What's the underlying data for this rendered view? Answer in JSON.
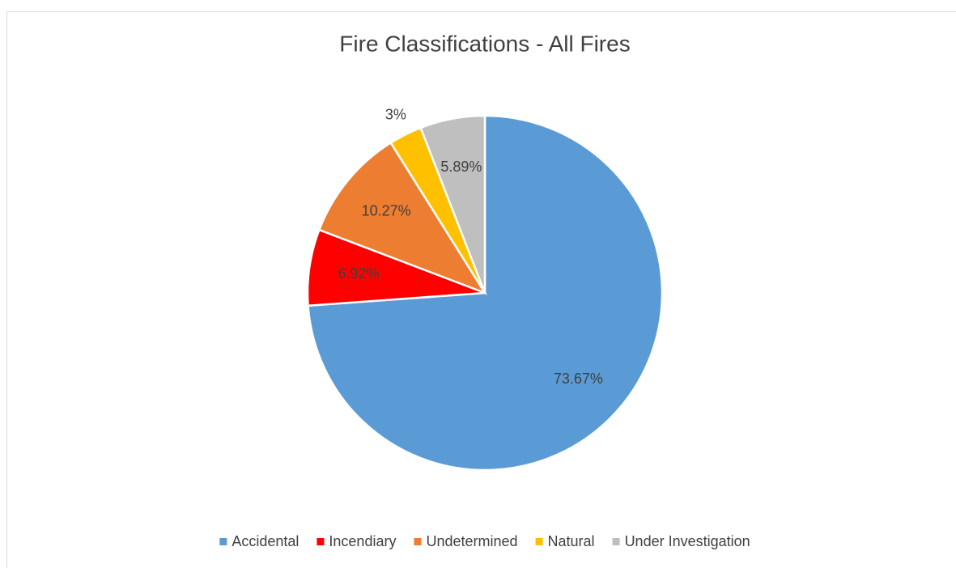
{
  "chart_data": {
    "type": "pie",
    "title": "Fire Classifications - All Fires",
    "categories": [
      "Accidental",
      "Incendiary",
      "Undetermined",
      "Natural",
      "Under Investigation"
    ],
    "values": [
      73.67,
      6.92,
      10.27,
      3,
      5.89
    ],
    "value_labels": [
      "73.67%",
      "6.92%",
      "10.27%",
      "3%",
      "5.89%"
    ],
    "colors": [
      "#5b9bd5",
      "#ff0000",
      "#ed7d31",
      "#ffc000",
      "#bfbfbf"
    ],
    "legend": "bottom"
  }
}
